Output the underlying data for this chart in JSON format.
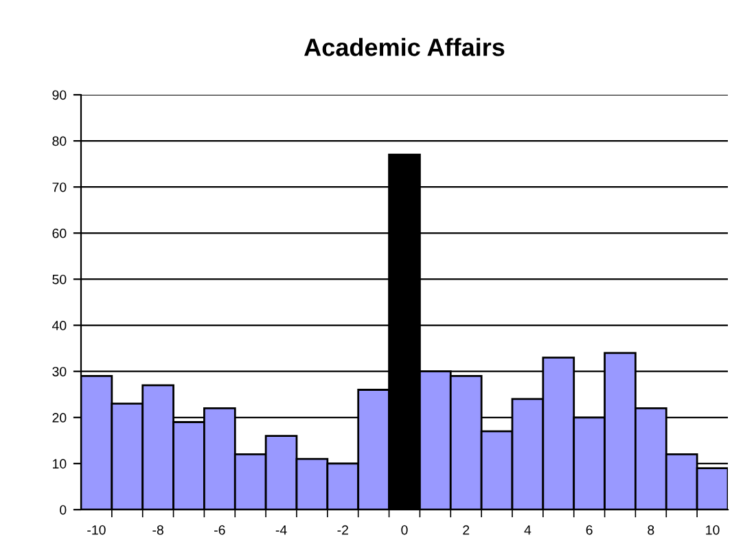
{
  "chart_data": {
    "type": "bar",
    "title": "Academic Affairs",
    "categories": [
      "-10",
      null,
      "-8",
      null,
      "-6",
      null,
      "-4",
      null,
      "-2",
      null,
      "0",
      null,
      "2",
      null,
      "4",
      null,
      "6",
      null,
      "8",
      null,
      "10"
    ],
    "values": [
      29,
      23,
      27,
      19,
      22,
      12,
      16,
      11,
      10,
      26,
      77,
      30,
      29,
      17,
      24,
      33,
      20,
      34,
      22,
      12,
      9
    ],
    "colors": [
      "#9999ff",
      "#9999ff",
      "#9999ff",
      "#9999ff",
      "#9999ff",
      "#9999ff",
      "#9999ff",
      "#9999ff",
      "#9999ff",
      "#9999ff",
      "#000000",
      "#9999ff",
      "#9999ff",
      "#9999ff",
      "#9999ff",
      "#9999ff",
      "#9999ff",
      "#9999ff",
      "#9999ff",
      "#9999ff",
      "#9999ff"
    ],
    "ylim": [
      0,
      90
    ],
    "yticks": [
      0,
      10,
      20,
      30,
      40,
      50,
      60,
      70,
      80,
      90
    ],
    "grid": "y"
  }
}
